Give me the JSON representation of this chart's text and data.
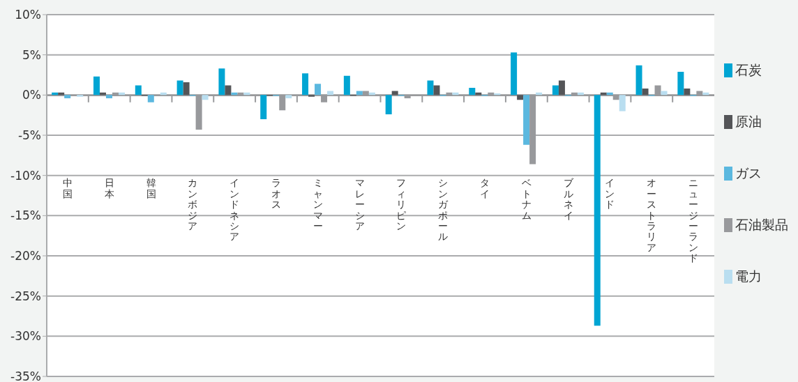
{
  "chart_data": {
    "type": "bar",
    "categories": [
      "中国",
      "日本",
      "韓国",
      "カンボジア",
      "インドネシア",
      "ラオス",
      "ミャンマー",
      "マレーシア",
      "フィリピン",
      "シンガポール",
      "タイ",
      "ベトナム",
      "ブルネイ",
      "インド",
      "オーストラリア",
      "ニュージーランド"
    ],
    "series": [
      {
        "name": "石炭",
        "color": "#00a5d3",
        "values": [
          0.3,
          2.3,
          1.2,
          1.8,
          3.3,
          -3.0,
          2.7,
          2.4,
          -2.4,
          1.8,
          0.9,
          5.3,
          1.2,
          -28.7,
          3.7,
          2.9
        ]
      },
      {
        "name": "原油",
        "color": "#545558",
        "values": [
          0.3,
          0.3,
          -0.1,
          1.6,
          1.2,
          -0.1,
          -0.2,
          -0.1,
          0.5,
          1.2,
          0.3,
          -0.6,
          1.8,
          0.3,
          0.8,
          0.8
        ]
      },
      {
        "name": "ガス",
        "color": "#5bb8df",
        "values": [
          -0.4,
          -0.4,
          -0.9,
          -0.1,
          0.3,
          -0.1,
          1.4,
          0.5,
          -0.1,
          -0.1,
          -0.1,
          -6.2,
          -0.1,
          0.3,
          -0.1,
          -0.1
        ]
      },
      {
        "name": "石油製品",
        "color": "#98999c",
        "values": [
          null,
          0.3,
          -0.1,
          -4.3,
          0.3,
          -1.9,
          -0.9,
          0.5,
          -0.4,
          0.3,
          0.3,
          -8.6,
          0.3,
          -0.6,
          1.2,
          0.5
        ]
      },
      {
        "name": "電力",
        "color": "#b9def0",
        "values": [
          -0.2,
          0.3,
          0.3,
          -0.6,
          0.3,
          -0.4,
          0.5,
          0.3,
          null,
          0.3,
          0.2,
          0.3,
          0.3,
          -2.0,
          0.5,
          0.3
        ]
      }
    ],
    "ylim": [
      -35,
      10
    ],
    "yticks": [
      {
        "value": -35,
        "label": "-35%"
      },
      {
        "value": -30,
        "label": "-30%"
      },
      {
        "value": -25,
        "label": "-25%"
      },
      {
        "value": -20,
        "label": "-20%"
      },
      {
        "value": -15,
        "label": "-15%"
      },
      {
        "value": -10,
        "label": "-10%"
      },
      {
        "value": -5,
        "label": "-5%"
      },
      {
        "value": 0,
        "label": "0%"
      },
      {
        "value": 5,
        "label": "5%"
      },
      {
        "value": 10,
        "label": "10%"
      }
    ],
    "grid": "y",
    "legend": "right"
  }
}
